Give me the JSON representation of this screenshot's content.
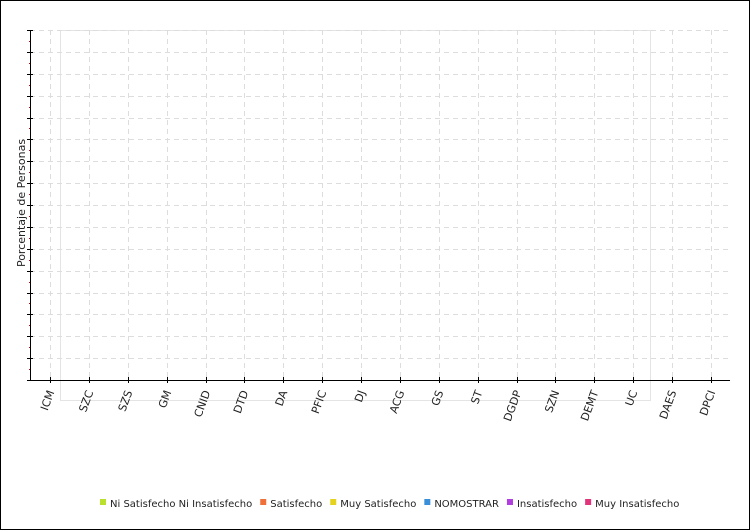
{
  "chart_data": {
    "type": "bar",
    "y_label": "Porcentaje de Personas",
    "categories": [
      "ICM",
      "SZC",
      "SZS",
      "GM",
      "CNID",
      "DTD",
      "DA",
      "PFIC",
      "DJ",
      "ACG",
      "GS",
      "ST",
      "DGDP",
      "SZN",
      "DEMT",
      "UC",
      "DAES",
      "DPCI"
    ],
    "series": [
      {
        "name": "Ni Satisfecho Ni Insatisfecho",
        "color": "#b8e02c",
        "values": [
          null,
          null,
          null,
          null,
          null,
          null,
          null,
          null,
          null,
          null,
          null,
          null,
          null,
          null,
          null,
          null,
          null,
          null
        ]
      },
      {
        "name": "Satisfecho",
        "color": "#f0703a",
        "values": [
          null,
          null,
          null,
          null,
          null,
          null,
          null,
          null,
          null,
          null,
          null,
          null,
          null,
          null,
          null,
          null,
          null,
          null
        ]
      },
      {
        "name": "Muy Satisfecho",
        "color": "#e4d21c",
        "values": [
          null,
          null,
          null,
          null,
          null,
          null,
          null,
          null,
          null,
          null,
          null,
          null,
          null,
          null,
          null,
          null,
          null,
          null
        ]
      },
      {
        "name": "NOMOSTRAR",
        "color": "#3a8fd8",
        "values": [
          null,
          null,
          null,
          null,
          null,
          null,
          null,
          null,
          null,
          null,
          null,
          null,
          null,
          null,
          null,
          null,
          null,
          null
        ]
      },
      {
        "name": "Insatisfecho",
        "color": "#b23ee0",
        "values": [
          null,
          null,
          null,
          null,
          null,
          null,
          null,
          null,
          null,
          null,
          null,
          null,
          null,
          null,
          null,
          null,
          null,
          null
        ]
      },
      {
        "name": "Muy Insatisfecho",
        "color": "#e0357a",
        "values": [
          null,
          null,
          null,
          null,
          null,
          null,
          null,
          null,
          null,
          null,
          null,
          null,
          null,
          null,
          null,
          null,
          null,
          null
        ]
      }
    ],
    "grid": true
  }
}
